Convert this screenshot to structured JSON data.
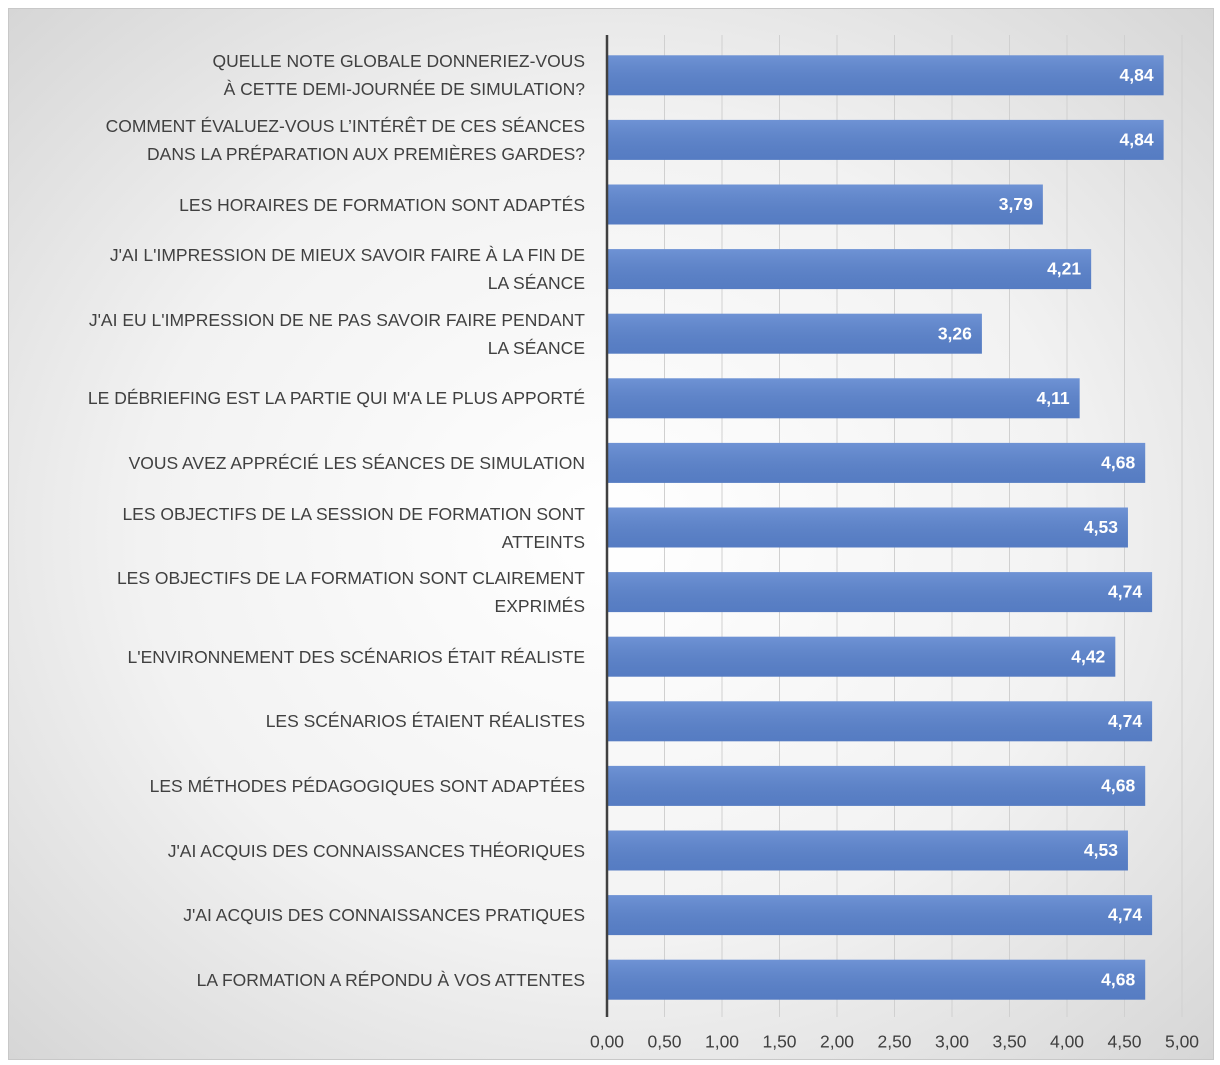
{
  "chart_data": {
    "type": "bar",
    "orientation": "horizontal",
    "categories": [
      "QUELLE NOTE GLOBALE DONNERIEZ-VOUS\nÀ CETTE DEMI-JOURNÉE DE SIMULATION?",
      "COMMENT ÉVALUEZ-VOUS L’INTÉRÊT DE CES SÉANCES\nDANS LA PRÉPARATION AUX PREMIÈRES GARDES?",
      "LES HORAIRES DE FORMATION SONT ADAPTÉS",
      "J'AI L'IMPRESSION DE MIEUX SAVOIR FAIRE À LA FIN DE\nLA SÉANCE",
      "J'AI EU L'IMPRESSION DE NE PAS SAVOIR FAIRE PENDANT\nLA SÉANCE",
      "LE DÉBRIEFING EST LA PARTIE QUI M'A LE PLUS APPORTÉ",
      "VOUS AVEZ APPRÉCIÉ LES SÉANCES DE SIMULATION",
      "LES OBJECTIFS DE LA SESSION DE FORMATION SONT\nATTEINTS",
      "LES OBJECTIFS DE LA FORMATION SONT CLAIREMENT\nEXPRIMÉS",
      "L'ENVIRONNEMENT DES SCÉNARIOS ÉTAIT RÉALISTE",
      "LES SCÉNARIOS ÉTAIENT RÉALISTES",
      "LES MÉTHODES PÉDAGOGIQUES SONT ADAPTÉES",
      "J'AI ACQUIS DES CONNAISSANCES THÉORIQUES",
      "J'AI ACQUIS DES CONNAISSANCES PRATIQUES",
      "LA FORMATION A RÉPONDU À VOS ATTENTES"
    ],
    "values": [
      4.84,
      4.84,
      3.79,
      4.21,
      3.26,
      4.11,
      4.68,
      4.53,
      4.74,
      4.42,
      4.74,
      4.68,
      4.53,
      4.74,
      4.68
    ],
    "value_labels": [
      "4,84",
      "4,84",
      "3,79",
      "4,21",
      "3,26",
      "4,11",
      "4,68",
      "4,53",
      "4,74",
      "4,42",
      "4,74",
      "4,68",
      "4,53",
      "4,74",
      "4,68"
    ],
    "color": "#5b84cf",
    "xlim": [
      0,
      5
    ],
    "xticks": [
      {
        "value": 0,
        "label": "0,00"
      },
      {
        "value": 0.5,
        "label": "0,50"
      },
      {
        "value": 1,
        "label": "1,00"
      },
      {
        "value": 1.5,
        "label": "1,50"
      },
      {
        "value": 2,
        "label": "2,00"
      },
      {
        "value": 2.5,
        "label": "2,50"
      },
      {
        "value": 3,
        "label": "3,00"
      },
      {
        "value": 3.5,
        "label": "3,50"
      },
      {
        "value": 4,
        "label": "4,00"
      },
      {
        "value": 4.5,
        "label": "4,50"
      },
      {
        "value": 5,
        "label": "5,00"
      }
    ],
    "grid": true
  }
}
